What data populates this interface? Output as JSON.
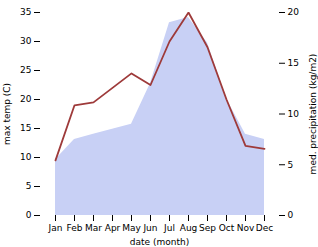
{
  "chart_data": {
    "type": "line",
    "categories": [
      "Jan",
      "Feb",
      "Mar",
      "Apr",
      "May",
      "Jun",
      "Jul",
      "Aug",
      "Sep",
      "Oct",
      "Nov",
      "Dec"
    ],
    "xlabel": "date (month)",
    "ylabel": "max temp (C)",
    "y2label": "med. precipitation (kg/m2)",
    "series": [
      {
        "type": "area",
        "axis": "y2",
        "color": "#c8d0f5",
        "values": [
          5.5,
          7.5,
          8.0,
          8.5,
          9.0,
          13.0,
          19.0,
          19.5,
          17.0,
          11.5,
          8.0,
          7.5
        ]
      },
      {
        "type": "line",
        "color": "#9e3a3a",
        "values": [
          9.5,
          19.0,
          19.5,
          22.0,
          24.5,
          22.5,
          30.0,
          35.0,
          29.0,
          20.0,
          12.0,
          11.5
        ]
      }
    ],
    "ylim": [
      0,
      35
    ],
    "yticks": [
      0,
      5,
      10,
      15,
      20,
      25,
      30,
      35
    ],
    "y2lim": [
      0,
      20
    ],
    "y2ticks": [
      0,
      5,
      10,
      15,
      20
    ],
    "grid": false
  }
}
